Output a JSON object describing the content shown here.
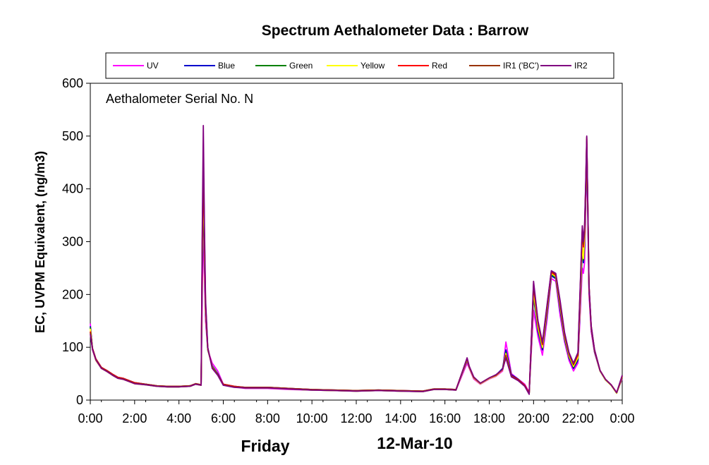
{
  "chart_data": {
    "type": "line",
    "title": "Spectrum Aethalometer Data  :  Barrow",
    "ylabel": "EC, UVPM Equivalent, (ng/m3)",
    "xlabel_left": "Friday",
    "xlabel_right": "12-Mar-10",
    "annotation": "Aethalometer  Serial No. N",
    "ylim": [
      0,
      600
    ],
    "yticks": [
      "0",
      "100",
      "200",
      "300",
      "400",
      "500",
      "600"
    ],
    "xlim": [
      0,
      24
    ],
    "xticks": [
      "0:00",
      "2:00",
      "4:00",
      "6:00",
      "8:00",
      "10:00",
      "12:00",
      "14:00",
      "16:00",
      "18:00",
      "20:00",
      "22:00",
      "0:00"
    ],
    "legend_position": "top",
    "x_hours": [
      0,
      0.1,
      0.25,
      0.5,
      0.75,
      1.0,
      1.25,
      1.5,
      1.75,
      2.0,
      2.5,
      3.0,
      3.5,
      4.0,
      4.5,
      4.75,
      5.0,
      5.05,
      5.1,
      5.15,
      5.2,
      5.3,
      5.5,
      5.75,
      6.0,
      6.5,
      7.0,
      8.0,
      9.0,
      10.0,
      11.0,
      12.0,
      13.0,
      14.0,
      15.0,
      15.5,
      16.0,
      16.5,
      17.0,
      17.1,
      17.3,
      17.6,
      18.0,
      18.3,
      18.6,
      18.75,
      19.0,
      19.3,
      19.6,
      19.8,
      20.0,
      20.2,
      20.4,
      20.6,
      20.8,
      21.0,
      21.2,
      21.4,
      21.6,
      21.8,
      22.0,
      22.2,
      22.25,
      22.3,
      22.35,
      22.4,
      22.45,
      22.5,
      22.6,
      22.75,
      23.0,
      23.25,
      23.5,
      23.75,
      24.0
    ],
    "series": [
      {
        "name": "UV",
        "color": "#ff00ff",
        "values": [
          145,
          95,
          75,
          60,
          55,
          48,
          42,
          40,
          36,
          32,
          30,
          27,
          25,
          25,
          26,
          30,
          28,
          200,
          330,
          230,
          150,
          95,
          70,
          55,
          30,
          25,
          22,
          22,
          20,
          19,
          18,
          17,
          18,
          17,
          16,
          20,
          20,
          19,
          70,
          60,
          40,
          30,
          40,
          45,
          55,
          110,
          50,
          40,
          30,
          15,
          170,
          120,
          85,
          150,
          230,
          225,
          160,
          110,
          75,
          55,
          70,
          250,
          240,
          260,
          360,
          470,
          340,
          200,
          130,
          90,
          55,
          38,
          28,
          15,
          40
        ]
      },
      {
        "name": "Blue",
        "color": "#0000cc",
        "values": [
          140,
          98,
          78,
          62,
          56,
          49,
          43,
          41,
          37,
          33,
          30,
          27,
          26,
          26,
          27,
          31,
          29,
          250,
          390,
          270,
          165,
          95,
          65,
          50,
          30,
          26,
          24,
          24,
          22,
          20,
          19,
          18,
          19,
          18,
          17,
          21,
          21,
          20,
          75,
          62,
          42,
          32,
          42,
          47,
          60,
          95,
          48,
          40,
          28,
          13,
          195,
          130,
          95,
          160,
          235,
          230,
          170,
          115,
          80,
          60,
          75,
          280,
          260,
          290,
          380,
          480,
          350,
          210,
          135,
          92,
          55,
          38,
          28,
          14,
          42
        ]
      },
      {
        "name": "Green",
        "color": "#008000",
        "values": [
          138,
          97,
          76,
          61,
          55,
          48,
          42,
          40,
          36,
          32,
          29,
          26,
          25,
          25,
          26,
          30,
          28,
          260,
          410,
          280,
          170,
          96,
          64,
          49,
          29,
          25,
          23,
          23,
          21,
          19,
          18,
          17,
          18,
          17,
          16,
          20,
          20,
          19,
          76,
          62,
          42,
          31,
          41,
          46,
          58,
          90,
          46,
          39,
          27,
          12,
          200,
          135,
          98,
          165,
          238,
          232,
          175,
          118,
          82,
          62,
          78,
          290,
          265,
          300,
          390,
          485,
          355,
          212,
          137,
          93,
          55,
          38,
          28,
          13,
          43
        ]
      },
      {
        "name": "Yellow",
        "color": "#ffff00",
        "values": [
          135,
          96,
          75,
          60,
          54,
          47,
          41,
          39,
          35,
          31,
          29,
          26,
          25,
          25,
          26,
          30,
          28,
          270,
          420,
          285,
          172,
          97,
          63,
          48,
          29,
          25,
          23,
          23,
          21,
          19,
          18,
          17,
          18,
          17,
          16,
          20,
          20,
          19,
          77,
          62,
          42,
          31,
          41,
          46,
          57,
          88,
          45,
          38,
          27,
          12,
          205,
          138,
          100,
          168,
          240,
          234,
          178,
          120,
          84,
          64,
          80,
          295,
          268,
          305,
          395,
          488,
          358,
          214,
          138,
          94,
          55,
          38,
          28,
          13,
          44
        ]
      },
      {
        "name": "Red",
        "color": "#ff0000",
        "values": [
          130,
          98,
          78,
          62,
          56,
          49,
          43,
          41,
          37,
          33,
          30,
          27,
          26,
          26,
          27,
          31,
          29,
          290,
          440,
          300,
          178,
          98,
          62,
          48,
          30,
          26,
          24,
          24,
          22,
          20,
          19,
          18,
          19,
          18,
          17,
          21,
          21,
          20,
          78,
          63,
          43,
          32,
          42,
          47,
          58,
          85,
          46,
          39,
          28,
          13,
          215,
          145,
          105,
          172,
          242,
          236,
          182,
          123,
          87,
          67,
          85,
          320,
          290,
          320,
          400,
          495,
          360,
          216,
          139,
          95,
          56,
          39,
          29,
          14,
          45
        ]
      },
      {
        "name": "IR1 ('BC')",
        "color": "#993300",
        "values": [
          128,
          97,
          77,
          61,
          55,
          48,
          42,
          40,
          36,
          32,
          30,
          27,
          26,
          26,
          27,
          31,
          29,
          300,
          460,
          310,
          182,
          99,
          62,
          48,
          29,
          25,
          24,
          24,
          22,
          20,
          19,
          18,
          19,
          18,
          17,
          21,
          21,
          20,
          79,
          63,
          43,
          32,
          42,
          47,
          58,
          83,
          45,
          38,
          27,
          12,
          220,
          148,
          108,
          175,
          244,
          238,
          185,
          125,
          88,
          68,
          88,
          325,
          295,
          325,
          405,
          498,
          362,
          217,
          140,
          95,
          56,
          39,
          29,
          14,
          46
        ]
      },
      {
        "name": "IR2",
        "color": "#800080",
        "values": [
          125,
          96,
          76,
          60,
          54,
          47,
          41,
          39,
          35,
          31,
          29,
          26,
          25,
          25,
          26,
          30,
          28,
          320,
          520,
          330,
          190,
          100,
          60,
          47,
          28,
          24,
          23,
          23,
          21,
          19,
          18,
          17,
          18,
          17,
          16,
          20,
          20,
          19,
          80,
          64,
          44,
          32,
          42,
          48,
          58,
          80,
          44,
          37,
          26,
          11,
          225,
          150,
          110,
          178,
          245,
          240,
          188,
          128,
          90,
          70,
          90,
          330,
          300,
          330,
          410,
          500,
          365,
          218,
          141,
          96,
          56,
          39,
          29,
          14,
          47
        ]
      }
    ]
  }
}
